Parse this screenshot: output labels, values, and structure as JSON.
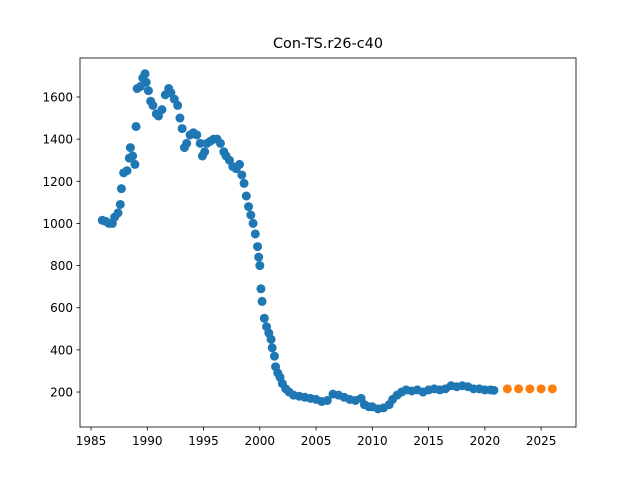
{
  "chart_data": {
    "type": "scatter",
    "title": "Con-TS.r26-c40",
    "xlim": [
      1984.02,
      2028.1
    ],
    "ylim": [
      34,
      1785
    ],
    "xticks": [
      1985,
      1990,
      1995,
      2000,
      2005,
      2010,
      2015,
      2020,
      2025
    ],
    "yticks": [
      200,
      400,
      600,
      800,
      1000,
      1200,
      1400,
      1600
    ],
    "series": [
      {
        "color": "#1f77b4",
        "x": [
          1986.0,
          1986.3,
          1986.6,
          1986.9,
          1987.1,
          1987.4,
          1987.6,
          1987.7,
          1987.9,
          1988.2,
          1988.4,
          1988.5,
          1988.7,
          1988.9,
          1989.0,
          1989.1,
          1989.4,
          1989.6,
          1989.8,
          1989.9,
          1990.1,
          1990.3,
          1990.5,
          1990.8,
          1991.0,
          1991.3,
          1991.6,
          1991.9,
          1992.1,
          1992.4,
          1992.7,
          1992.9,
          1993.1,
          1993.3,
          1993.5,
          1993.8,
          1994.1,
          1994.4,
          1994.7,
          1994.9,
          1995.1,
          1995.3,
          1995.6,
          1995.9,
          1996.2,
          1996.5,
          1996.8,
          1997.0,
          1997.3,
          1997.6,
          1997.9,
          1998.2,
          1998.4,
          1998.6,
          1998.8,
          1999.0,
          1999.2,
          1999.4,
          1999.6,
          1999.8,
          1999.9,
          2000.0,
          2000.1,
          2000.2,
          2000.4,
          2000.6,
          2000.8,
          2001.0,
          2001.1,
          2001.3,
          2001.4,
          2001.6,
          2001.8,
          2002.0,
          2002.3,
          2002.6,
          2003.0,
          2003.5,
          2004.0,
          2004.5,
          2005.0,
          2005.5,
          2006.0,
          2006.5,
          2007.0,
          2007.5,
          2008.0,
          2008.5,
          2009.0,
          2009.3,
          2009.7,
          2010.0,
          2010.5,
          2011.0,
          2011.5,
          2011.8,
          2012.2,
          2012.6,
          2013.0,
          2013.5,
          2014.0,
          2014.5,
          2015.0,
          2015.5,
          2016.0,
          2016.5,
          2017.0,
          2017.5,
          2018.0,
          2018.5,
          2019.0,
          2019.5,
          2020.0,
          2020.5,
          2020.8
        ],
        "values": [
          1015,
          1010,
          1000,
          1000,
          1030,
          1050,
          1090,
          1165,
          1240,
          1250,
          1310,
          1360,
          1320,
          1280,
          1460,
          1640,
          1650,
          1690,
          1710,
          1670,
          1630,
          1580,
          1560,
          1520,
          1510,
          1540,
          1610,
          1640,
          1620,
          1590,
          1560,
          1500,
          1450,
          1360,
          1380,
          1420,
          1430,
          1420,
          1380,
          1320,
          1340,
          1380,
          1390,
          1400,
          1400,
          1380,
          1340,
          1320,
          1300,
          1270,
          1260,
          1280,
          1230,
          1190,
          1130,
          1080,
          1040,
          1000,
          950,
          890,
          840,
          800,
          690,
          630,
          550,
          510,
          480,
          450,
          410,
          370,
          320,
          290,
          270,
          240,
          215,
          200,
          185,
          180,
          175,
          170,
          165,
          155,
          160,
          190,
          185,
          175,
          165,
          160,
          170,
          140,
          130,
          130,
          120,
          125,
          140,
          165,
          185,
          200,
          210,
          205,
          210,
          200,
          210,
          215,
          210,
          215,
          230,
          225,
          230,
          225,
          215,
          215,
          210,
          210,
          208
        ]
      },
      {
        "color": "#ff7f0e",
        "x": [
          2022,
          2023,
          2024,
          2025,
          2026
        ],
        "values": [
          215,
          215,
          215,
          215,
          215
        ]
      }
    ]
  }
}
